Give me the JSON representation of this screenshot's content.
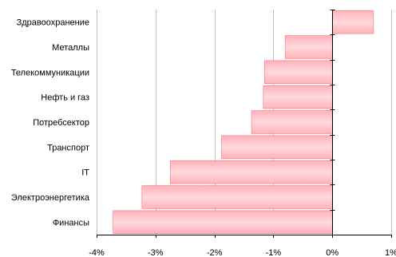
{
  "chart_data": {
    "type": "bar",
    "orientation": "horizontal",
    "title": "",
    "xlabel": "",
    "ylabel": "",
    "xlim": [
      -4,
      1
    ],
    "xticks": [
      -4,
      -3,
      -2,
      -1,
      0,
      1
    ],
    "tick_labels": [
      "-4%",
      "-3%",
      "-2%",
      "-1%",
      "0%",
      "1%"
    ],
    "grid": "vertical",
    "categories": [
      "Здравоохранение",
      "Металлы",
      "Телекоммуникации",
      "Нефть и газ",
      "Потребсектор",
      "Транспорт",
      "IT",
      "Электроэнергетика",
      "Финансы"
    ],
    "values": [
      0.7,
      -0.8,
      -1.15,
      -1.17,
      -1.37,
      -1.88,
      -2.75,
      -3.23,
      -3.72
    ],
    "colors": {
      "bar_light": "#ffd9dc",
      "bar_mid": "#ffb2b8",
      "bar_edge": "#ff6f7c",
      "grid": "#c0c0c0",
      "axis": "#000000"
    }
  }
}
